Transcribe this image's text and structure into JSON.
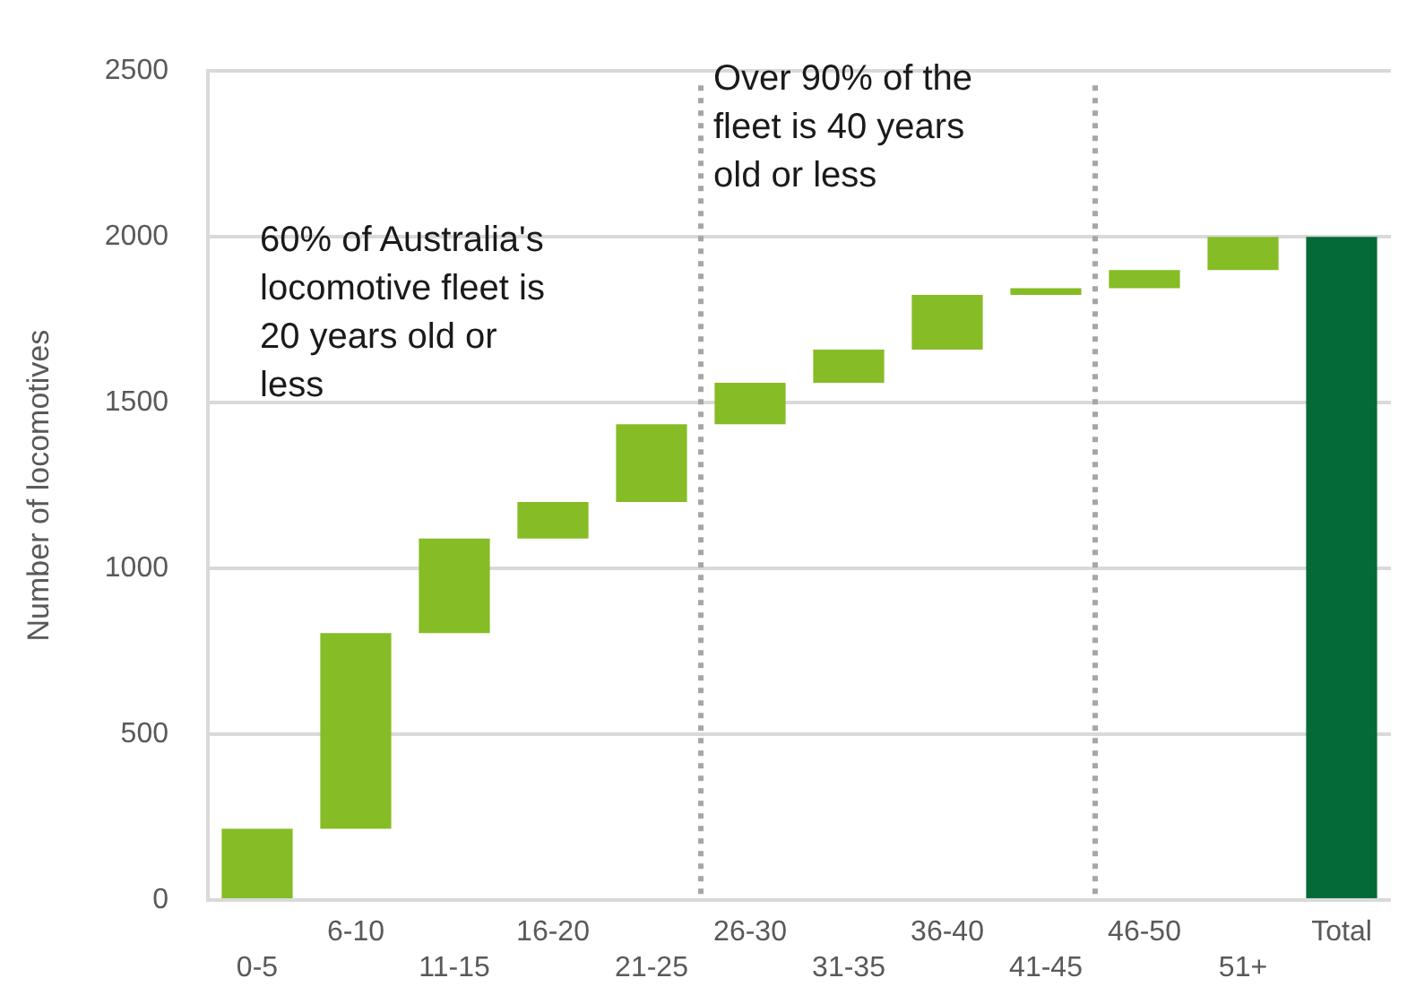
{
  "chart_data": {
    "type": "bar",
    "ylabel": "Number of locomotives",
    "categories": [
      "0-5",
      "6-10",
      "11-15",
      "16-20",
      "21-25",
      "26-30",
      "31-35",
      "36-40",
      "41-45",
      "46-50",
      "51+",
      "Total"
    ],
    "values": [
      215,
      590,
      285,
      110,
      235,
      125,
      100,
      165,
      20,
      55,
      100,
      2000
    ],
    "base": [
      0,
      215,
      805,
      1090,
      1200,
      1435,
      1560,
      1660,
      1825,
      1845,
      1900,
      0
    ],
    "colors": [
      "#86bc25",
      "#86bc25",
      "#86bc25",
      "#86bc25",
      "#86bc25",
      "#86bc25",
      "#86bc25",
      "#86bc25",
      "#86bc25",
      "#86bc25",
      "#86bc25",
      "#046a38"
    ],
    "ylim": [
      0,
      2500
    ],
    "yticks": [
      0,
      500,
      1000,
      1500,
      2000,
      2500
    ],
    "grid": "y",
    "legend": false,
    "annotations": [
      "60% of Australia's locomotive fleet is 20 years old or less",
      "Over 90% of the fleet is 40 years old or less"
    ]
  }
}
